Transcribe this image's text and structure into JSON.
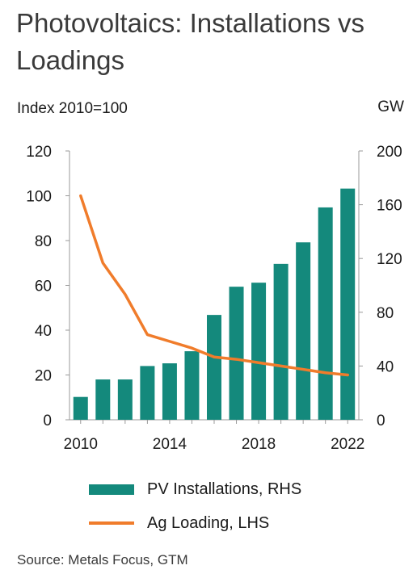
{
  "colors": {
    "bars": "#14897c",
    "line": "#f07c2b",
    "axis": "#999999",
    "text": "#1a1a1a"
  },
  "chart_data": {
    "type": "bar+line",
    "title": "Photovoltaics: Installations vs Loadings",
    "left_axis_label": "Index 2010=100",
    "right_axis_label": "GW",
    "x": [
      2010,
      2011,
      2012,
      2013,
      2014,
      2015,
      2016,
      2017,
      2018,
      2019,
      2020,
      2021,
      2022
    ],
    "x_ticks": [
      "2010",
      "2014",
      "2018",
      "2022"
    ],
    "y_left_ticks": [
      "0",
      "20",
      "40",
      "60",
      "80",
      "100",
      "120"
    ],
    "y_right_ticks": [
      "0",
      "40",
      "80",
      "120",
      "160",
      "200"
    ],
    "ylim_left": [
      0,
      120
    ],
    "ylim_right": [
      0,
      200
    ],
    "grid": false,
    "series": [
      {
        "name": "PV Installations, RHS",
        "type": "bar",
        "axis": "right",
        "values": [
          17,
          30,
          30,
          40,
          42,
          51,
          78,
          99,
          102,
          116,
          132,
          158,
          172
        ]
      },
      {
        "name": "Ag Loading, LHS",
        "type": "line",
        "axis": "left",
        "values": [
          100,
          70,
          56,
          38,
          35,
          32,
          28,
          27,
          25.5,
          24,
          22.5,
          21,
          20
        ]
      }
    ],
    "legend_position": "bottom",
    "source": "Source: Metals Focus, GTM"
  }
}
